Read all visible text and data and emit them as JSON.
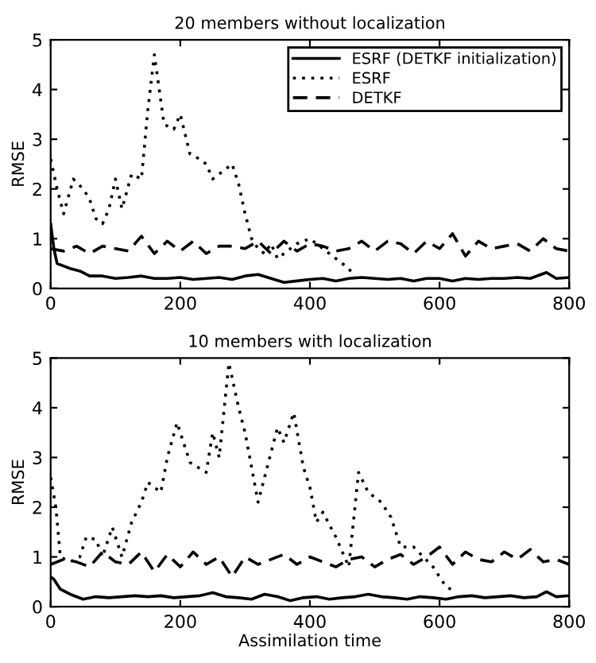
{
  "chart_data": [
    {
      "type": "line",
      "title": "20 members without localization",
      "ylabel": "RMSE",
      "xlim": [
        0,
        800
      ],
      "ylim": [
        0,
        5
      ],
      "xticks": [
        0,
        200,
        400,
        600,
        800
      ],
      "yticks": [
        0,
        1,
        2,
        3,
        4,
        5
      ],
      "grid": false,
      "legend": "top right",
      "marker": "none",
      "series": [
        {
          "name": "ESRF (DETKF initialization)",
          "color": "#000000",
          "line_style": "solid",
          "x": [
            0,
            5,
            10,
            20,
            30,
            45,
            60,
            80,
            100,
            120,
            140,
            160,
            180,
            200,
            220,
            240,
            260,
            280,
            300,
            320,
            340,
            360,
            380,
            400,
            420,
            440,
            460,
            480,
            500,
            520,
            540,
            560,
            580,
            600,
            620,
            640,
            660,
            680,
            700,
            720,
            740,
            765,
            780,
            800
          ],
          "values": [
            1.3,
            0.8,
            0.5,
            0.45,
            0.4,
            0.35,
            0.25,
            0.25,
            0.2,
            0.22,
            0.25,
            0.2,
            0.2,
            0.22,
            0.18,
            0.2,
            0.22,
            0.18,
            0.25,
            0.28,
            0.2,
            0.12,
            0.15,
            0.18,
            0.2,
            0.15,
            0.2,
            0.22,
            0.2,
            0.18,
            0.2,
            0.15,
            0.2,
            0.2,
            0.15,
            0.2,
            0.18,
            0.2,
            0.2,
            0.22,
            0.2,
            0.32,
            0.2,
            0.22
          ]
        },
        {
          "name": "ESRF",
          "color": "#000000",
          "line_style": "dotted",
          "x": [
            0,
            10,
            20,
            35,
            50,
            60,
            70,
            80,
            90,
            100,
            110,
            125,
            140,
            150,
            160,
            175,
            190,
            200,
            215,
            230,
            240,
            250,
            270,
            280,
            290,
            300,
            310,
            320,
            330,
            340,
            350,
            360,
            380,
            400,
            420,
            440,
            460,
            470
          ],
          "values": [
            2.6,
            2.0,
            1.5,
            2.2,
            2.0,
            1.8,
            1.4,
            1.3,
            1.6,
            2.2,
            1.6,
            2.3,
            2.2,
            3.6,
            4.7,
            3.3,
            3.2,
            3.5,
            2.7,
            2.6,
            2.5,
            2.2,
            2.4,
            2.5,
            2.1,
            1.5,
            1.0,
            0.8,
            0.7,
            0.9,
            0.6,
            0.7,
            0.9,
            1.0,
            0.8,
            0.6,
            0.4,
            0.2
          ]
        },
        {
          "name": "DETKF",
          "color": "#000000",
          "line_style": "dashed",
          "x": [
            0,
            20,
            40,
            60,
            80,
            100,
            120,
            140,
            160,
            180,
            200,
            220,
            240,
            260,
            280,
            300,
            320,
            340,
            360,
            380,
            400,
            420,
            440,
            460,
            480,
            500,
            520,
            540,
            560,
            580,
            600,
            620,
            640,
            660,
            680,
            700,
            720,
            740,
            760,
            780,
            800
          ],
          "values": [
            0.8,
            0.75,
            0.85,
            0.7,
            0.85,
            0.8,
            0.75,
            1.05,
            0.7,
            0.95,
            0.75,
            0.95,
            0.7,
            0.85,
            0.85,
            0.8,
            0.95,
            0.7,
            0.95,
            0.75,
            0.9,
            0.85,
            0.75,
            0.8,
            0.95,
            0.75,
            0.95,
            0.9,
            0.7,
            0.95,
            0.8,
            1.1,
            0.65,
            0.95,
            0.8,
            0.85,
            0.9,
            0.75,
            1.0,
            0.8,
            0.75
          ]
        }
      ]
    },
    {
      "type": "line",
      "title": "10 members with localization",
      "xlabel": "Assimilation time",
      "ylabel": "RMSE",
      "xlim": [
        0,
        800
      ],
      "ylim": [
        0,
        5
      ],
      "xticks": [
        0,
        200,
        400,
        600,
        800
      ],
      "yticks": [
        0,
        1,
        2,
        3,
        4,
        5
      ],
      "grid": false,
      "marker": "none",
      "series": [
        {
          "color": "#000000",
          "line_style": "solid",
          "x": [
            0,
            5,
            15,
            30,
            50,
            70,
            90,
            110,
            130,
            150,
            170,
            190,
            210,
            230,
            250,
            270,
            290,
            310,
            330,
            350,
            370,
            390,
            410,
            430,
            450,
            470,
            490,
            510,
            530,
            550,
            570,
            590,
            610,
            630,
            650,
            670,
            690,
            710,
            730,
            750,
            765,
            780,
            800
          ],
          "values": [
            0.6,
            0.55,
            0.35,
            0.25,
            0.15,
            0.2,
            0.18,
            0.2,
            0.22,
            0.2,
            0.22,
            0.18,
            0.2,
            0.22,
            0.28,
            0.2,
            0.18,
            0.15,
            0.25,
            0.2,
            0.12,
            0.18,
            0.2,
            0.15,
            0.18,
            0.2,
            0.25,
            0.2,
            0.18,
            0.15,
            0.2,
            0.18,
            0.15,
            0.2,
            0.22,
            0.18,
            0.2,
            0.22,
            0.18,
            0.2,
            0.3,
            0.2,
            0.22
          ]
        },
        {
          "color": "#000000",
          "line_style": "dotted",
          "x": [
            0,
            8,
            15,
            30,
            45,
            55,
            70,
            80,
            95,
            110,
            125,
            140,
            150,
            170,
            180,
            195,
            205,
            215,
            240,
            250,
            260,
            275,
            290,
            300,
            310,
            320,
            330,
            350,
            360,
            375,
            390,
            400,
            410,
            420,
            440,
            460,
            475,
            490,
            510,
            525,
            540,
            560,
            575,
            590,
            600,
            610,
            625
          ],
          "values": [
            2.6,
            2.0,
            1.0,
            0.9,
            1.0,
            1.4,
            1.35,
            1.0,
            1.6,
            1.0,
            1.7,
            2.1,
            2.5,
            2.3,
            3.0,
            3.7,
            3.3,
            2.9,
            2.7,
            3.5,
            3.0,
            4.9,
            4.0,
            3.5,
            2.8,
            2.1,
            2.6,
            3.6,
            3.3,
            3.9,
            2.8,
            2.4,
            1.7,
            1.9,
            1.4,
            0.8,
            2.7,
            2.3,
            2.1,
            1.8,
            1.2,
            1.2,
            1.0,
            0.8,
            0.6,
            0.4,
            0.3
          ]
        },
        {
          "color": "#000000",
          "line_style": "dashed",
          "x": [
            0,
            20,
            40,
            60,
            80,
            100,
            120,
            140,
            160,
            180,
            200,
            220,
            240,
            260,
            280,
            300,
            320,
            340,
            360,
            380,
            400,
            420,
            440,
            460,
            480,
            500,
            520,
            540,
            560,
            580,
            600,
            620,
            640,
            660,
            680,
            700,
            720,
            740,
            760,
            780,
            800
          ],
          "values": [
            0.85,
            0.95,
            0.9,
            0.8,
            1.1,
            0.9,
            0.85,
            1.1,
            0.7,
            1.05,
            0.8,
            1.1,
            0.85,
            1.0,
            0.6,
            1.0,
            0.85,
            0.95,
            1.05,
            0.85,
            1.0,
            0.9,
            0.8,
            0.95,
            1.0,
            0.8,
            0.95,
            1.05,
            0.85,
            1.0,
            1.2,
            0.85,
            1.1,
            0.95,
            0.9,
            1.1,
            0.95,
            1.15,
            0.9,
            0.95,
            0.85
          ]
        }
      ]
    }
  ]
}
